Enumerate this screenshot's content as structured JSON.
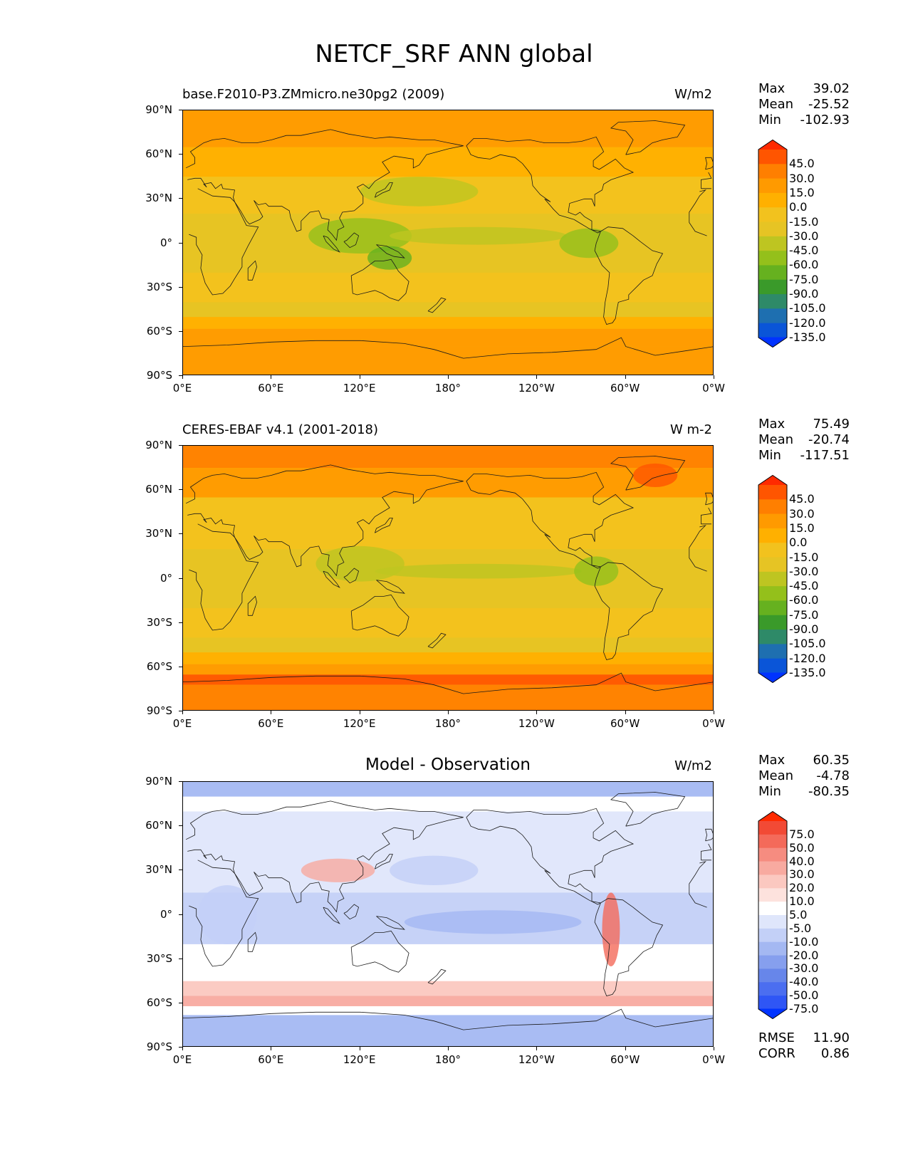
{
  "figure_title": "NETCF_SRF ANN global",
  "lat_ticks": [
    "90°N",
    "60°N",
    "30°N",
    "0°",
    "30°S",
    "60°S",
    "90°S"
  ],
  "lon_ticks": [
    "0°E",
    "60°E",
    "120°E",
    "180°",
    "120°W",
    "60°W",
    "0°W"
  ],
  "panels": [
    {
      "title_left": "base.F2010-P3.ZMmicro.ne30pg2 (2009)",
      "title_center": "",
      "units": "W/m2",
      "stats": [
        {
          "label": "Max",
          "value": "39.02"
        },
        {
          "label": "Mean",
          "value": "-25.52"
        },
        {
          "label": "Min",
          "value": "-102.93"
        }
      ],
      "colorbar": {
        "levels": [
          "45.0",
          "30.0",
          "15.0",
          "0.0",
          "-15.0",
          "-30.0",
          "-45.0",
          "-60.0",
          "-75.0",
          "-90.0",
          "-105.0",
          "-120.0",
          "-135.0"
        ],
        "colors": [
          "#ff2a00",
          "#ff5500",
          "#ff7f00",
          "#ff9a00",
          "#ffb000",
          "#f2c21e",
          "#e6c424",
          "#bec521",
          "#94c01b",
          "#66b11f",
          "#3a9a2a",
          "#2e8a68",
          "#1e6fb0",
          "#0a55d8",
          "#0033ff"
        ]
      },
      "footer_stats": []
    },
    {
      "title_left": "CERES-EBAF v4.1 (2001-2018)",
      "title_center": "",
      "units": "W m-2",
      "stats": [
        {
          "label": "Max",
          "value": "75.49"
        },
        {
          "label": "Mean",
          "value": "-20.74"
        },
        {
          "label": "Min",
          "value": "-117.51"
        }
      ],
      "colorbar": {
        "levels": [
          "45.0",
          "30.0",
          "15.0",
          "0.0",
          "-15.0",
          "-30.0",
          "-45.0",
          "-60.0",
          "-75.0",
          "-90.0",
          "-105.0",
          "-120.0",
          "-135.0"
        ],
        "colors": [
          "#ff2a00",
          "#ff5500",
          "#ff7f00",
          "#ff9a00",
          "#ffb000",
          "#f2c21e",
          "#e6c424",
          "#bec521",
          "#94c01b",
          "#66b11f",
          "#3a9a2a",
          "#2e8a68",
          "#1e6fb0",
          "#0a55d8",
          "#0033ff"
        ]
      },
      "footer_stats": []
    },
    {
      "title_left": "",
      "title_center": "Model - Observation",
      "units": "W/m2",
      "stats": [
        {
          "label": "Max",
          "value": "60.35"
        },
        {
          "label": "Mean",
          "value": "-4.78"
        },
        {
          "label": "Min",
          "value": "-80.35"
        }
      ],
      "colorbar": {
        "levels": [
          "75.0",
          "50.0",
          "40.0",
          "30.0",
          "20.0",
          "10.0",
          "5.0",
          "-5.0",
          "-10.0",
          "-20.0",
          "-30.0",
          "-40.0",
          "-50.0",
          "-75.0"
        ],
        "colors": [
          "#ff2a00",
          "#f24a35",
          "#f46a5a",
          "#f68c80",
          "#f8aaa0",
          "#fbc8c0",
          "#fde2dd",
          "#ffffff",
          "#dfe6fb",
          "#c3d0f7",
          "#a4b8f2",
          "#869fee",
          "#6786ea",
          "#4b6ef0",
          "#2f56f5",
          "#0033ff"
        ]
      },
      "footer_stats": [
        {
          "label": "RMSE",
          "value": "11.90"
        },
        {
          "label": "CORR",
          "value": "0.86"
        }
      ]
    }
  ]
}
